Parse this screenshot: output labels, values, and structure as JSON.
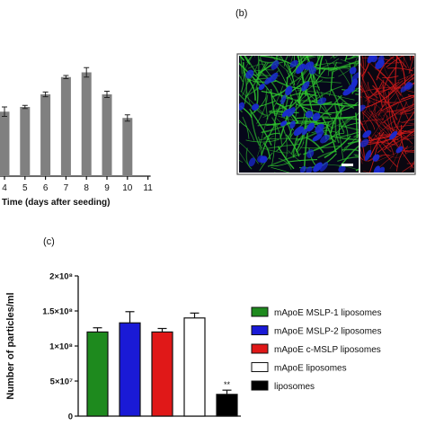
{
  "chart_data": [
    {
      "type": "bar",
      "panel_label": "",
      "xlabel": "Time (days after seeding)",
      "ylabel": "",
      "x_ticks": [
        "4",
        "5",
        "6",
        "7",
        "8",
        "9",
        "10",
        "11"
      ],
      "categories": [
        "4",
        "5",
        "6",
        "7",
        "8",
        "9",
        "10"
      ],
      "values": [
        4.1,
        4.4,
        5.2,
        6.3,
        6.6,
        5.2,
        3.7
      ],
      "errors": [
        0.3,
        0.1,
        0.15,
        0.1,
        0.3,
        0.2,
        0.2
      ],
      "ylim": [
        0,
        8
      ],
      "bar_color": "#808080",
      "grid": false
    },
    {
      "type": "image",
      "panel_label": "(b)",
      "images": [
        {
          "stain_colors": [
            "#1a2ad0",
            "#2ec02e"
          ]
        },
        {
          "stain_colors": [
            "#1a2ad0",
            "#d01a1a"
          ]
        }
      ]
    },
    {
      "type": "bar",
      "panel_label": "(c)",
      "xlabel": "",
      "ylabel": "Number of particles/ml",
      "ytick_labels": [
        "0",
        "5×10⁷",
        "1×10⁸",
        "1.5×10⁸",
        "2×10⁸"
      ],
      "ylim": [
        0,
        200000000
      ],
      "categories": [
        "mApoE MSLP-1 liposomes",
        "mApoE MSLP-2 liposomes",
        "mApoE c-MSLP liposomes",
        "mApoE liposomes",
        "liposomes"
      ],
      "values": [
        120000000,
        133000000,
        120000000,
        140000000,
        31000000
      ],
      "errors": [
        6000000,
        16000000,
        5000000,
        7000000,
        6000000
      ],
      "colors": [
        "#1e8a1e",
        "#1a1ad6",
        "#e01818",
        "#ffffff",
        "#000000"
      ],
      "annotations": [
        {
          "category": "liposomes",
          "text": "**"
        }
      ],
      "legend": {
        "placement": "right",
        "entries": [
          "mApoE MSLP-1 liposomes",
          "mApoE MSLP-2 liposomes",
          "mApoE c-MSLP liposomes",
          "mApoE liposomes",
          "liposomes"
        ]
      },
      "grid": false
    }
  ]
}
